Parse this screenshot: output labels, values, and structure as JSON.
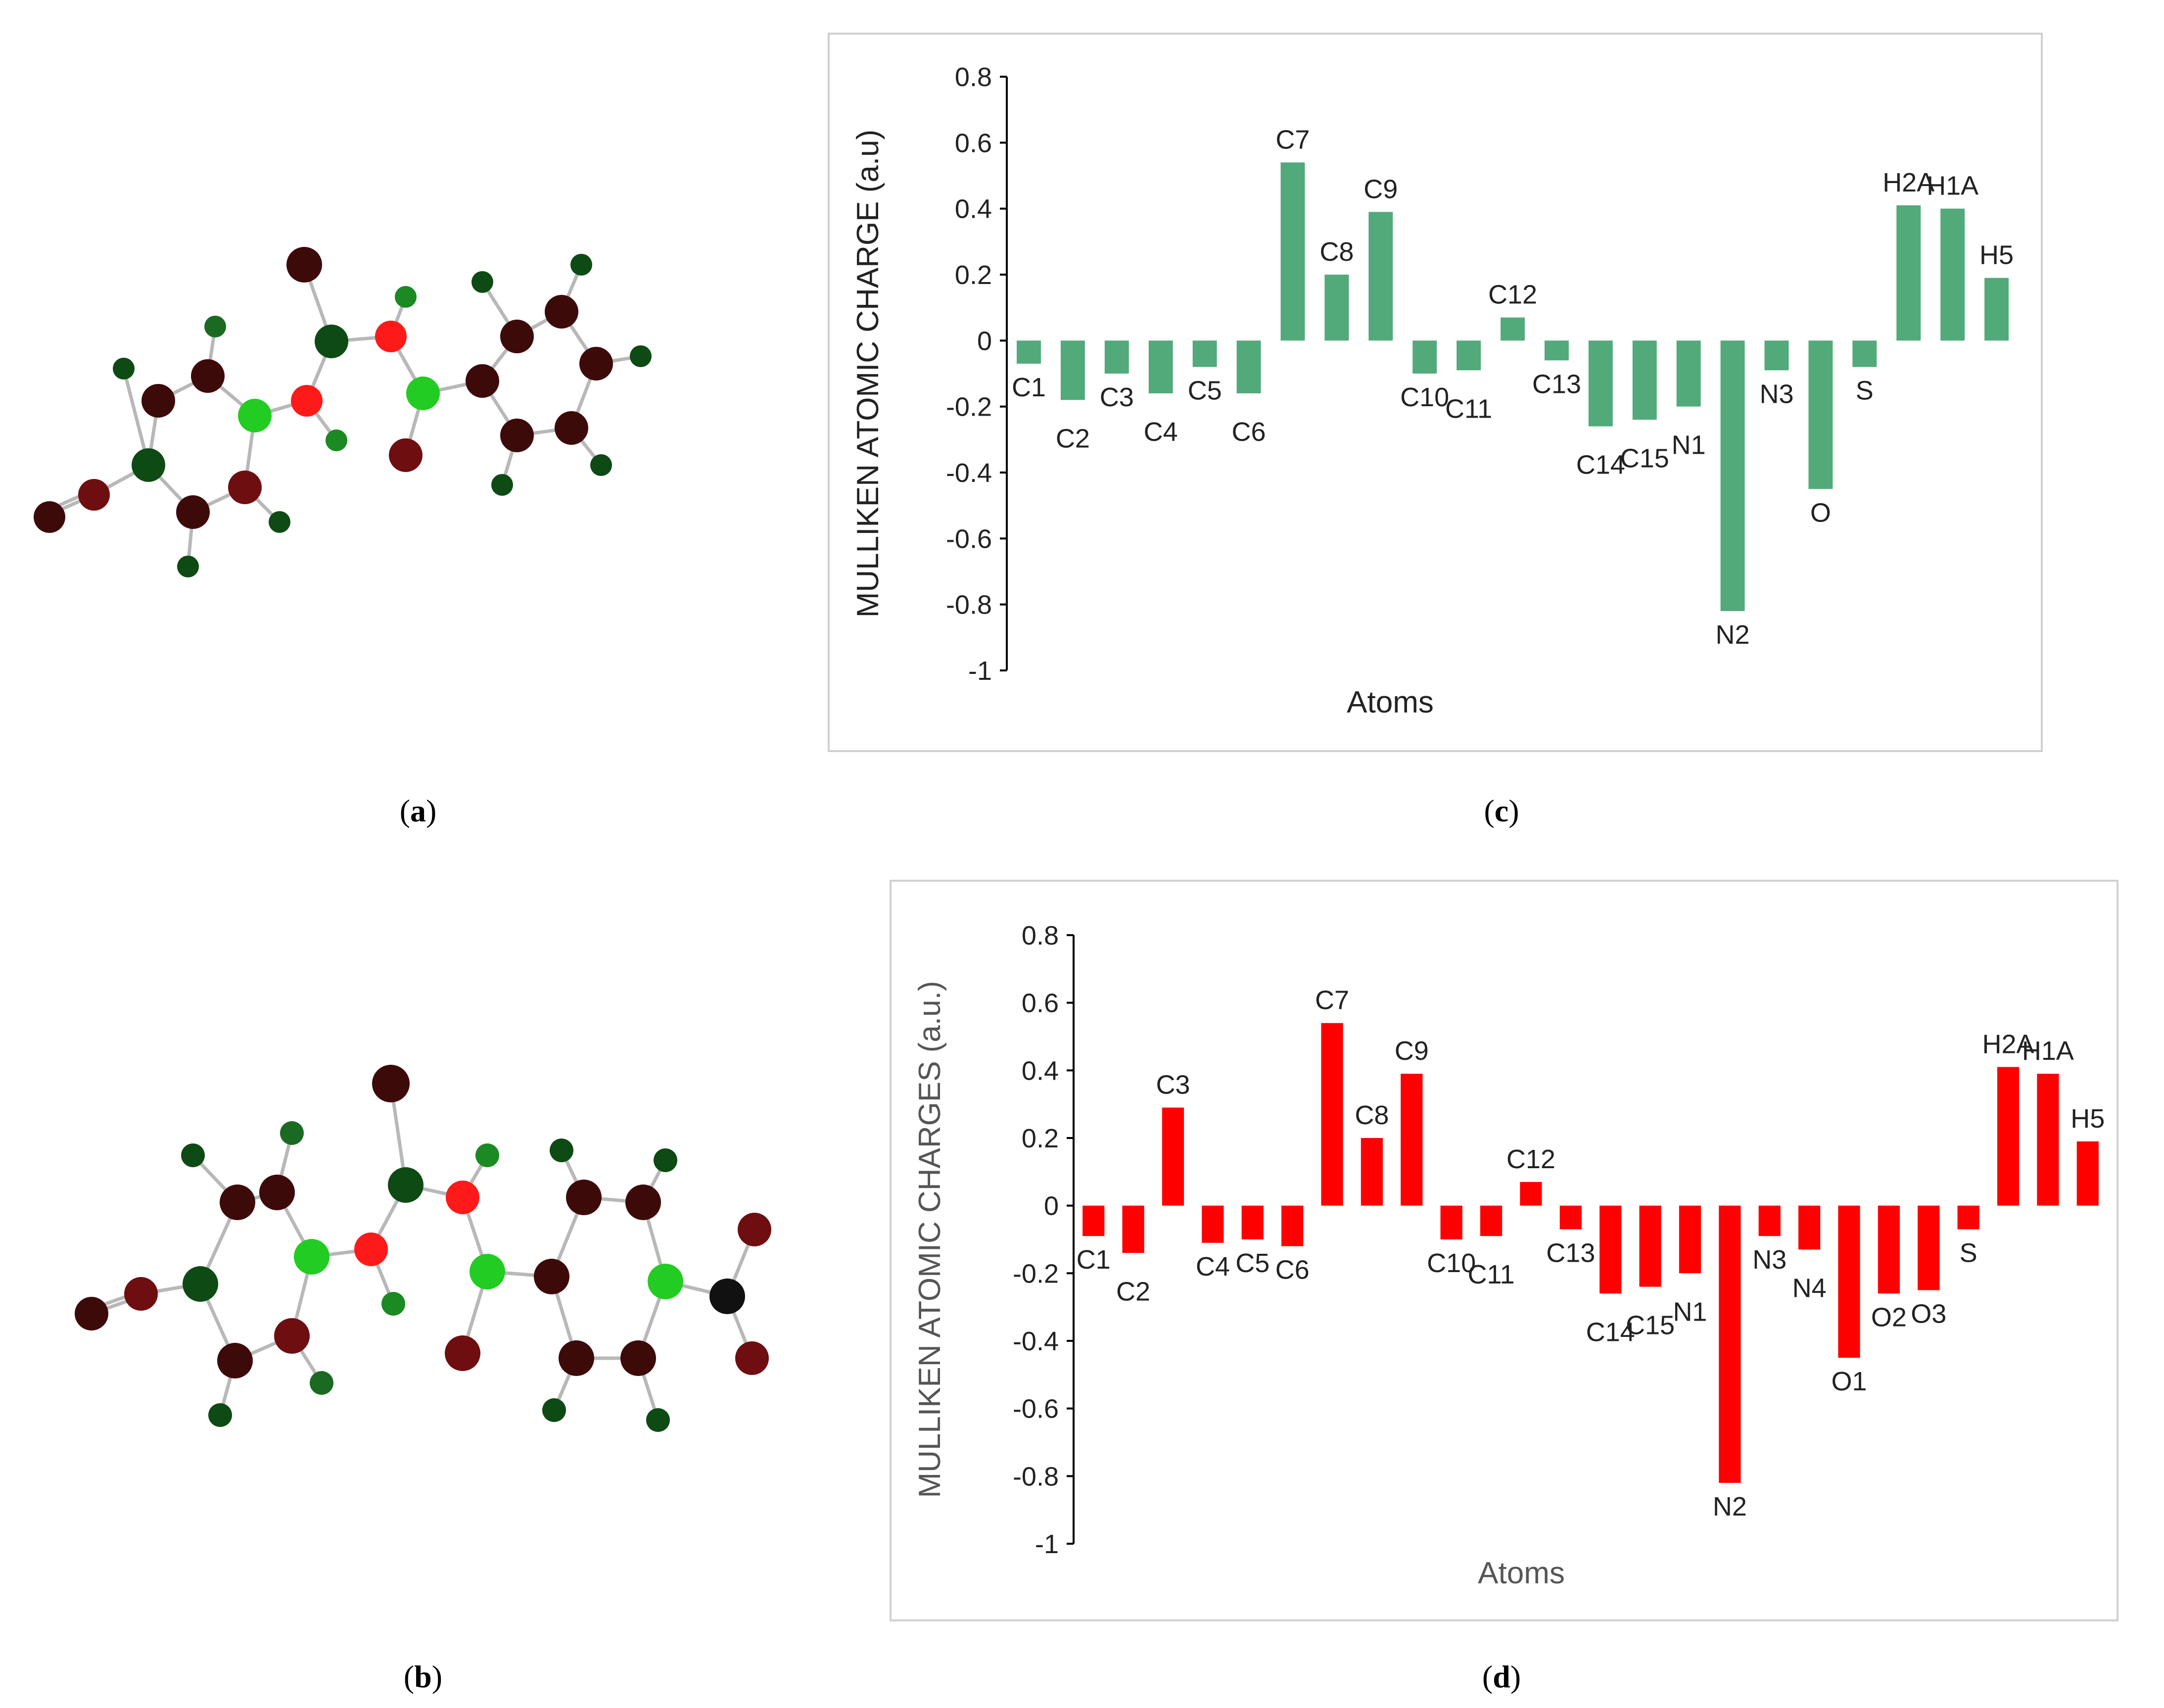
{
  "panel_labels": {
    "a": "a",
    "b": "b",
    "c": "c",
    "d": "d"
  },
  "colors": {
    "series_c": "#52a97a",
    "series_d": "#ff0000",
    "axis": "#000000",
    "panel_border": "#d0d0d0",
    "atom_red": "#ff1a1a",
    "atom_green": "#22cc22",
    "atom_darkgreen": "#0e4a14",
    "atom_darkred": "#3d0a0a",
    "atom_maroon": "#6e0e10",
    "atom_black": "#111111",
    "bond": "#b8b8b8"
  },
  "chart_data": [
    {
      "id": "c",
      "type": "bar",
      "title": "",
      "xlabel": "Atoms",
      "ylabel": "MULLIKEN ATOMIC CHARGE (a.u)",
      "ylim": [
        -1,
        0.8
      ],
      "yticks": [
        0.8,
        0.6,
        0.4,
        0.2,
        0,
        -0.2,
        -0.4,
        -0.6,
        -0.8,
        -1
      ],
      "ytick_labels": [
        "0.8",
        "0.6",
        "0.4",
        "0.2",
        "0",
        "-0.2",
        "-0.4",
        "-0.6",
        "-0.8",
        "-1"
      ],
      "grid": false,
      "categories": [
        "C1",
        "C2",
        "C3",
        "C4",
        "C5",
        "C6",
        "C7",
        "C8",
        "C9",
        "C10",
        "C11",
        "C12",
        "C13",
        "C14",
        "C15",
        "N1",
        "N2",
        "N3",
        "O",
        "S",
        "H2A",
        "H1A",
        "H5"
      ],
      "values": [
        -0.07,
        -0.18,
        -0.1,
        -0.16,
        -0.08,
        -0.16,
        0.54,
        0.2,
        0.39,
        -0.1,
        -0.09,
        0.07,
        -0.06,
        -0.26,
        -0.24,
        -0.2,
        -0.82,
        -0.09,
        -0.45,
        -0.08,
        0.41,
        0.4,
        0.19
      ],
      "label_offsets": [
        0,
        1,
        0,
        1,
        0,
        1,
        0,
        0,
        0,
        0,
        1,
        0,
        0,
        1,
        1,
        1,
        0,
        0,
        0,
        0,
        0,
        0,
        0
      ]
    },
    {
      "id": "d",
      "type": "bar",
      "title": "",
      "xlabel": "Atoms",
      "ylabel": "MULLIKEN ATOMIC CHARGES (a.u.)",
      "ylim": [
        -1,
        0.8
      ],
      "yticks": [
        0.8,
        0.6,
        0.4,
        0.2,
        0,
        -0.2,
        -0.4,
        -0.6,
        -0.8,
        -1
      ],
      "ytick_labels": [
        "0.8",
        "0.6",
        "0.4",
        "0.2",
        "0",
        "-0.2",
        "-0.4",
        "-0.6",
        "-0.8",
        "-1"
      ],
      "grid": false,
      "categories": [
        "C1",
        "C2",
        "C3",
        "C4",
        "C5",
        "C6",
        "C7",
        "C8",
        "C9",
        "C10",
        "C11",
        "C12",
        "C13",
        "C14",
        "C15",
        "N1",
        "N2",
        "N3",
        "N4",
        "O1",
        "O2",
        "O3",
        "S",
        "H2A",
        "H1A",
        "H5"
      ],
      "values": [
        -0.09,
        -0.14,
        0.29,
        -0.11,
        -0.1,
        -0.12,
        0.54,
        0.2,
        0.39,
        -0.1,
        -0.09,
        0.07,
        -0.07,
        -0.26,
        -0.24,
        -0.2,
        -0.82,
        -0.09,
        -0.13,
        -0.45,
        -0.26,
        -0.25,
        -0.07,
        0.41,
        0.39,
        0.19
      ],
      "label_offsets": [
        0,
        1,
        0,
        0,
        0,
        0,
        0,
        0,
        0,
        0,
        1,
        0,
        0,
        1,
        1,
        1,
        0,
        0,
        1,
        0,
        0,
        0,
        0,
        0,
        0,
        0
      ]
    }
  ]
}
